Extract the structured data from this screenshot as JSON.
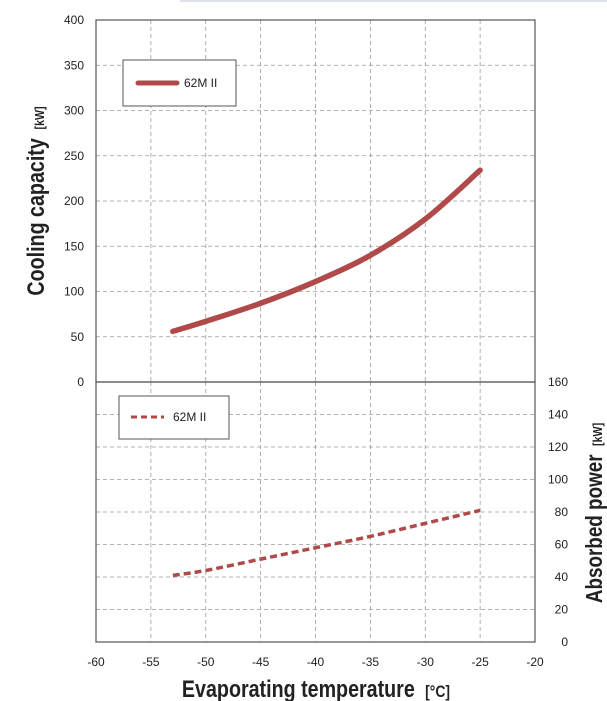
{
  "chart_data": [
    {
      "type": "line",
      "panel": "top",
      "ylabel": "Cooling capacity",
      "ylabel_unit": "[kW]",
      "xlim": [
        -60,
        -20
      ],
      "ylim": [
        0,
        400
      ],
      "yticks": [
        0,
        50,
        100,
        150,
        200,
        250,
        300,
        350,
        400
      ],
      "grid": true,
      "legend_position": "top-left",
      "series": [
        {
          "name": "62M II",
          "style": "solid",
          "color": "#b04a4a",
          "points": [
            {
              "x": -53,
              "y": 56
            },
            {
              "x": -50,
              "y": 67
            },
            {
              "x": -45,
              "y": 87
            },
            {
              "x": -40,
              "y": 111
            },
            {
              "x": -35,
              "y": 140
            },
            {
              "x": -30,
              "y": 180
            },
            {
              "x": -25,
              "y": 234
            }
          ]
        }
      ]
    },
    {
      "type": "line",
      "panel": "bottom",
      "ylabel": "Absorbed power",
      "ylabel_unit": "[kW]",
      "xlabel": "Evaporating temperature",
      "xlabel_unit": "[°C]",
      "xlim": [
        -60,
        -20
      ],
      "xticks": [
        -60,
        -55,
        -50,
        -45,
        -40,
        -35,
        -30,
        -25,
        -20
      ],
      "ylim": [
        0,
        160
      ],
      "yticks": [
        0,
        20,
        40,
        60,
        80,
        100,
        120,
        140,
        160
      ],
      "grid": true,
      "legend_position": "top-left",
      "series": [
        {
          "name": "62M II",
          "style": "dashed",
          "color": "#b04a4a",
          "points": [
            {
              "x": -53,
              "y": 41
            },
            {
              "x": -50,
              "y": 44
            },
            {
              "x": -45,
              "y": 51
            },
            {
              "x": -40,
              "y": 58
            },
            {
              "x": -35,
              "y": 65
            },
            {
              "x": -30,
              "y": 73
            },
            {
              "x": -25,
              "y": 81
            }
          ]
        }
      ]
    }
  ]
}
